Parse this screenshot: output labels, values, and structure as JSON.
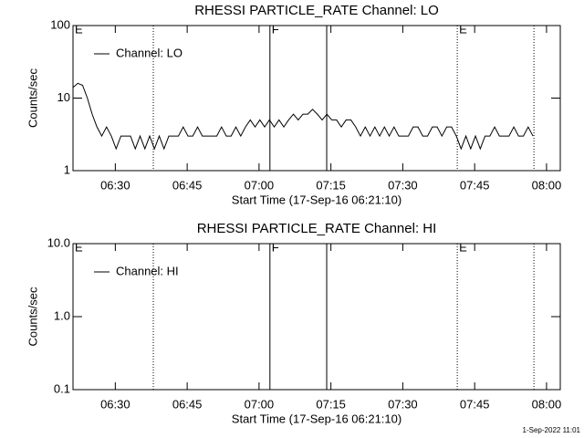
{
  "chart_data": [
    {
      "type": "line",
      "title": "RHESSI PARTICLE_RATE Channel: LO",
      "x_label": "Start Time (17-Sep-16 06:21:10)",
      "y_label": "Counts/sec",
      "log_y": true,
      "legend": "upper left",
      "xlim": [
        0,
        101.7
      ],
      "xticks": [
        {
          "value": 8.83,
          "label": "06:30"
        },
        {
          "value": 23.83,
          "label": "06:45"
        },
        {
          "value": 38.83,
          "label": "07:00"
        },
        {
          "value": 53.83,
          "label": "07:15"
        },
        {
          "value": 68.83,
          "label": "07:30"
        },
        {
          "value": 83.83,
          "label": "07:45"
        },
        {
          "value": 98.83,
          "label": "08:00"
        }
      ],
      "ylim": [
        1,
        100
      ],
      "yticks": [
        1,
        10,
        100
      ],
      "vlines": [
        {
          "x": 16.76,
          "style": "dotted"
        },
        {
          "x": 41.1,
          "style": "solid"
        },
        {
          "x": 52.95,
          "style": "solid"
        },
        {
          "x": 80.2,
          "style": "dotted"
        },
        {
          "x": 96.2,
          "style": "dotted"
        }
      ],
      "annotations": [
        {
          "text": "E",
          "x": 0
        },
        {
          "text": "F",
          "x": 41.1
        },
        {
          "text": "E",
          "x": 80.2
        }
      ],
      "series": [
        {
          "name": "Channel: LO",
          "color": "#000000",
          "x": [
            0,
            1,
            2,
            3,
            4,
            5,
            6,
            7,
            8,
            9,
            10,
            11,
            12,
            13,
            14,
            15,
            16,
            17,
            18,
            19,
            20,
            21,
            22,
            23,
            24,
            25,
            26,
            27,
            28,
            29,
            30,
            31,
            32,
            33,
            34,
            35,
            36,
            37,
            38,
            39,
            40,
            41,
            42,
            43,
            44,
            45,
            46,
            47,
            48,
            49,
            50,
            51,
            52,
            53,
            54,
            55,
            56,
            57,
            58,
            59,
            60,
            61,
            62,
            63,
            64,
            65,
            66,
            67,
            68,
            69,
            70,
            71,
            72,
            73,
            74,
            75,
            76,
            77,
            78,
            79,
            80,
            81,
            82,
            83,
            84,
            85,
            86,
            87,
            88,
            89,
            90,
            91,
            92,
            93,
            94,
            95,
            96
          ],
          "values": [
            14,
            16,
            15,
            10,
            6,
            4,
            3,
            4,
            3,
            2,
            3,
            3,
            3,
            2,
            3,
            2,
            3,
            2,
            3,
            2,
            3,
            3,
            3,
            4,
            3,
            3,
            4,
            3,
            3,
            3,
            3,
            4,
            3,
            3,
            4,
            3,
            4,
            5,
            4,
            5,
            4,
            5,
            4,
            5,
            4,
            5,
            6,
            5,
            6,
            6,
            7,
            6,
            5,
            6,
            5,
            5,
            4,
            5,
            5,
            4,
            3,
            4,
            3,
            4,
            3,
            4,
            3,
            4,
            3,
            3,
            3,
            4,
            4,
            3,
            3,
            4,
            4,
            3,
            4,
            4,
            3,
            2,
            3,
            2,
            3,
            2,
            3,
            3,
            4,
            3,
            3,
            3,
            4,
            3,
            3,
            4,
            3
          ]
        }
      ]
    },
    {
      "type": "line",
      "title": "RHESSI PARTICLE_RATE Channel: HI",
      "x_label": "Start Time (17-Sep-16 06:21:10)",
      "y_label": "Counts/sec",
      "log_y": true,
      "legend": "upper left",
      "xlim": [
        0,
        101.7
      ],
      "xticks": [
        {
          "value": 8.83,
          "label": "06:30"
        },
        {
          "value": 23.83,
          "label": "06:45"
        },
        {
          "value": 38.83,
          "label": "07:00"
        },
        {
          "value": 53.83,
          "label": "07:15"
        },
        {
          "value": 68.83,
          "label": "07:30"
        },
        {
          "value": 83.83,
          "label": "07:45"
        },
        {
          "value": 98.83,
          "label": "08:00"
        }
      ],
      "ylim": [
        0.1,
        10
      ],
      "yticks": [
        0.1,
        {
          "value": 1,
          "label": "1.0"
        },
        {
          "value": 10,
          "label": "10.0"
        }
      ],
      "vlines": [
        {
          "x": 16.76,
          "style": "dotted"
        },
        {
          "x": 41.1,
          "style": "solid"
        },
        {
          "x": 52.95,
          "style": "solid"
        },
        {
          "x": 80.2,
          "style": "dotted"
        },
        {
          "x": 96.2,
          "style": "dotted"
        }
      ],
      "annotations": [
        {
          "text": "E",
          "x": 0
        },
        {
          "text": "F",
          "x": 41.1
        },
        {
          "text": "E",
          "x": 80.2
        }
      ],
      "series": [
        {
          "name": "Channel: HI",
          "color": "#000000",
          "x": [],
          "values": []
        }
      ]
    }
  ],
  "footer": "1-Sep-2022 11:01"
}
